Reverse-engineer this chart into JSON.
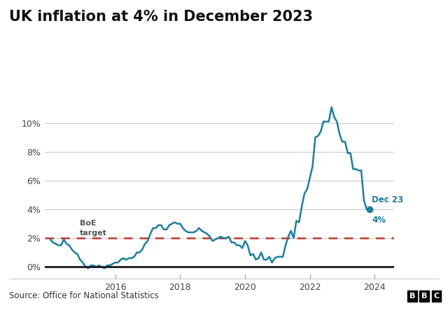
{
  "title": "UK inflation at 4% in December 2023",
  "source": "Source: Office for National Statistics",
  "line_color": "#1a7fa0",
  "boe_target_color": "#c0392b",
  "boe_label_line1": "BoE",
  "boe_label_line2": "target",
  "end_label_line1": "Dec 23",
  "end_label_line2": "4%",
  "end_dot_color": "#1a7fa0",
  "ylim": [
    -0.5,
    12.2
  ],
  "yticks": [
    0,
    2,
    4,
    6,
    8,
    10
  ],
  "ytick_labels": [
    "0%",
    "2%",
    "4%",
    "6%",
    "8%",
    "10%"
  ],
  "xlim_left": 2013.83,
  "xlim_right": 2024.6,
  "xtick_years": [
    2016,
    2018,
    2020,
    2022,
    2024
  ],
  "background_color": "#ffffff",
  "grid_color": "#cccccc",
  "zero_line_color": "#1a1a1a",
  "data": [
    [
      2014.0,
      1.9
    ],
    [
      2014.083,
      1.7
    ],
    [
      2014.167,
      1.6
    ],
    [
      2014.25,
      1.5
    ],
    [
      2014.333,
      1.5
    ],
    [
      2014.417,
      1.9
    ],
    [
      2014.5,
      1.6
    ],
    [
      2014.583,
      1.5
    ],
    [
      2014.667,
      1.2
    ],
    [
      2014.75,
      1.0
    ],
    [
      2014.833,
      0.9
    ],
    [
      2014.917,
      0.5
    ],
    [
      2015.0,
      0.3
    ],
    [
      2015.083,
      0.0
    ],
    [
      2015.167,
      -0.1
    ],
    [
      2015.25,
      0.1
    ],
    [
      2015.333,
      0.1
    ],
    [
      2015.417,
      0.0
    ],
    [
      2015.5,
      0.1
    ],
    [
      2015.583,
      0.0
    ],
    [
      2015.667,
      -0.1
    ],
    [
      2015.75,
      0.1
    ],
    [
      2015.833,
      0.1
    ],
    [
      2015.917,
      0.2
    ],
    [
      2016.0,
      0.3
    ],
    [
      2016.083,
      0.3
    ],
    [
      2016.167,
      0.5
    ],
    [
      2016.25,
      0.6
    ],
    [
      2016.333,
      0.5
    ],
    [
      2016.417,
      0.6
    ],
    [
      2016.5,
      0.6
    ],
    [
      2016.583,
      0.7
    ],
    [
      2016.667,
      1.0
    ],
    [
      2016.75,
      1.0
    ],
    [
      2016.833,
      1.2
    ],
    [
      2016.917,
      1.6
    ],
    [
      2017.0,
      1.8
    ],
    [
      2017.083,
      2.3
    ],
    [
      2017.167,
      2.7
    ],
    [
      2017.25,
      2.7
    ],
    [
      2017.333,
      2.9
    ],
    [
      2017.417,
      2.9
    ],
    [
      2017.5,
      2.6
    ],
    [
      2017.583,
      2.6
    ],
    [
      2017.667,
      2.9
    ],
    [
      2017.75,
      3.0
    ],
    [
      2017.833,
      3.1
    ],
    [
      2017.917,
      3.0
    ],
    [
      2018.0,
      3.0
    ],
    [
      2018.083,
      2.7
    ],
    [
      2018.167,
      2.5
    ],
    [
      2018.25,
      2.4
    ],
    [
      2018.333,
      2.4
    ],
    [
      2018.417,
      2.4
    ],
    [
      2018.5,
      2.5
    ],
    [
      2018.583,
      2.7
    ],
    [
      2018.667,
      2.5
    ],
    [
      2018.75,
      2.4
    ],
    [
      2018.833,
      2.3
    ],
    [
      2018.917,
      2.1
    ],
    [
      2019.0,
      1.8
    ],
    [
      2019.083,
      1.9
    ],
    [
      2019.167,
      2.0
    ],
    [
      2019.25,
      2.1
    ],
    [
      2019.333,
      2.0
    ],
    [
      2019.417,
      2.0
    ],
    [
      2019.5,
      2.1
    ],
    [
      2019.583,
      1.7
    ],
    [
      2019.667,
      1.7
    ],
    [
      2019.75,
      1.5
    ],
    [
      2019.833,
      1.5
    ],
    [
      2019.917,
      1.3
    ],
    [
      2020.0,
      1.8
    ],
    [
      2020.083,
      1.5
    ],
    [
      2020.167,
      0.8
    ],
    [
      2020.25,
      0.9
    ],
    [
      2020.333,
      0.5
    ],
    [
      2020.417,
      0.6
    ],
    [
      2020.5,
      1.0
    ],
    [
      2020.583,
      0.5
    ],
    [
      2020.667,
      0.5
    ],
    [
      2020.75,
      0.7
    ],
    [
      2020.833,
      0.3
    ],
    [
      2020.917,
      0.6
    ],
    [
      2021.0,
      0.7
    ],
    [
      2021.083,
      0.7
    ],
    [
      2021.167,
      0.7
    ],
    [
      2021.25,
      1.5
    ],
    [
      2021.333,
      2.1
    ],
    [
      2021.417,
      2.5
    ],
    [
      2021.5,
      2.0
    ],
    [
      2021.583,
      3.2
    ],
    [
      2021.667,
      3.1
    ],
    [
      2021.75,
      4.2
    ],
    [
      2021.833,
      5.1
    ],
    [
      2021.917,
      5.4
    ],
    [
      2022.0,
      6.2
    ],
    [
      2022.083,
      7.0
    ],
    [
      2022.167,
      9.0
    ],
    [
      2022.25,
      9.1
    ],
    [
      2022.333,
      9.4
    ],
    [
      2022.417,
      10.1
    ],
    [
      2022.5,
      10.1
    ],
    [
      2022.583,
      10.1
    ],
    [
      2022.667,
      11.1
    ],
    [
      2022.75,
      10.4
    ],
    [
      2022.833,
      10.1
    ],
    [
      2022.917,
      9.2
    ],
    [
      2023.0,
      8.7
    ],
    [
      2023.083,
      8.7
    ],
    [
      2023.167,
      7.9
    ],
    [
      2023.25,
      7.9
    ],
    [
      2023.333,
      6.8
    ],
    [
      2023.417,
      6.8
    ],
    [
      2023.5,
      6.7
    ],
    [
      2023.583,
      6.7
    ],
    [
      2023.667,
      4.6
    ],
    [
      2023.75,
      4.0
    ],
    [
      2023.833,
      4.0
    ]
  ]
}
